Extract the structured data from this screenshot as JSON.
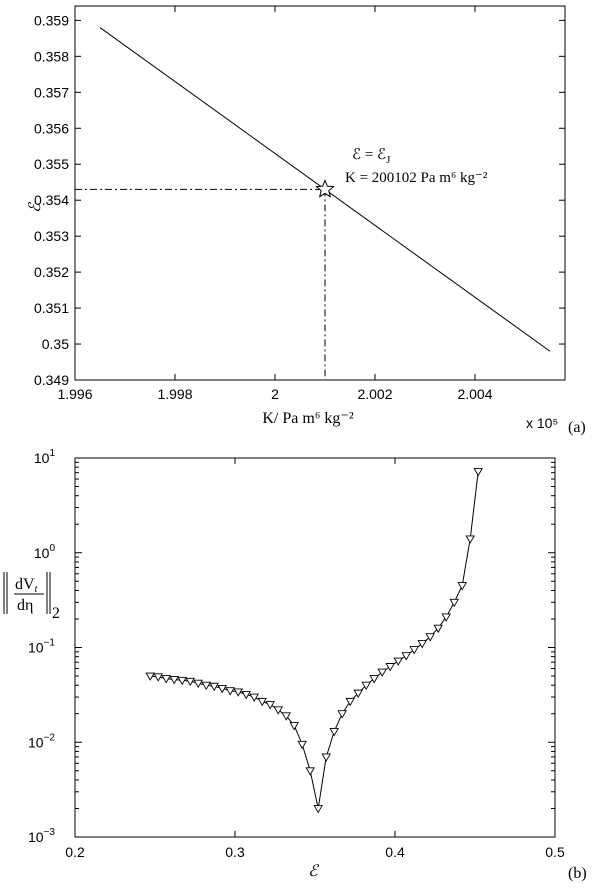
{
  "chart_data": [
    {
      "type": "line",
      "panel_label": "(a)",
      "xlabel": "K/ Pa m⁶ kg⁻²",
      "ylabel": "ℰ",
      "x_multiplier_label": "x 10⁵",
      "xlim": [
        1.996,
        2.0058
      ],
      "ylim": [
        0.349,
        0.3594
      ],
      "x_ticks": [
        "1.996",
        "1.998",
        "2",
        "2.002",
        "2.004"
      ],
      "x_tick_values": [
        1.996,
        1.998,
        2.0,
        2.002,
        2.004
      ],
      "y_ticks": [
        "0.349",
        "0.35",
        "0.351",
        "0.352",
        "0.353",
        "0.354",
        "0.355",
        "0.356",
        "0.357",
        "0.358",
        "0.359"
      ],
      "y_tick_values": [
        0.349,
        0.35,
        0.351,
        0.352,
        0.353,
        0.354,
        0.355,
        0.356,
        0.357,
        0.358,
        0.359
      ],
      "series": [
        {
          "x": [
            1.9965,
            2.0055
          ],
          "y": [
            0.3588,
            0.3498
          ]
        }
      ],
      "marker": {
        "x": 2.001,
        "y": 0.3543,
        "shape": "star"
      },
      "annotation_line1": "ℰ = ℰ",
      "annotation_line1_sub": "J",
      "annotation_line2": "K = 200102 Pa m⁶ kg⁻²",
      "grid": false
    },
    {
      "type": "line",
      "panel_label": "(b)",
      "xlabel": "ℰ",
      "ylabel_numerator": "dV",
      "ylabel_numerator_sub": "t",
      "ylabel_denominator": "dη",
      "ylabel_norm_sub": "2",
      "yscale": "log",
      "xlim": [
        0.2,
        0.5
      ],
      "ylim": [
        0.001,
        10
      ],
      "x_ticks": [
        "0.2",
        "0.3",
        "0.4",
        "0.5"
      ],
      "x_tick_values": [
        0.2,
        0.3,
        0.4,
        0.5
      ],
      "y_tick_bases": [
        "10",
        "10",
        "10",
        "10",
        "10"
      ],
      "y_tick_exponents": [
        "1",
        "0",
        "−1",
        "−2",
        "−3"
      ],
      "y_tick_values": [
        10,
        1,
        0.1,
        0.01,
        0.001
      ],
      "series": [
        {
          "marker": "triangle-down",
          "x": [
            0.247,
            0.252,
            0.257,
            0.262,
            0.267,
            0.272,
            0.277,
            0.282,
            0.287,
            0.292,
            0.297,
            0.302,
            0.307,
            0.312,
            0.317,
            0.322,
            0.327,
            0.332,
            0.337,
            0.342,
            0.347,
            0.352,
            0.357,
            0.362,
            0.367,
            0.372,
            0.377,
            0.382,
            0.387,
            0.392,
            0.397,
            0.402,
            0.407,
            0.412,
            0.417,
            0.422,
            0.427,
            0.432,
            0.437,
            0.442,
            0.447,
            0.452
          ],
          "y": [
            0.05,
            0.049,
            0.047,
            0.046,
            0.045,
            0.044,
            0.042,
            0.04,
            0.039,
            0.037,
            0.035,
            0.034,
            0.032,
            0.03,
            0.027,
            0.025,
            0.022,
            0.019,
            0.015,
            0.0095,
            0.005,
            0.002,
            0.007,
            0.013,
            0.02,
            0.027,
            0.033,
            0.04,
            0.047,
            0.055,
            0.063,
            0.072,
            0.082,
            0.095,
            0.11,
            0.13,
            0.16,
            0.21,
            0.3,
            0.45,
            1.4,
            7.2
          ]
        }
      ],
      "grid": false
    }
  ]
}
